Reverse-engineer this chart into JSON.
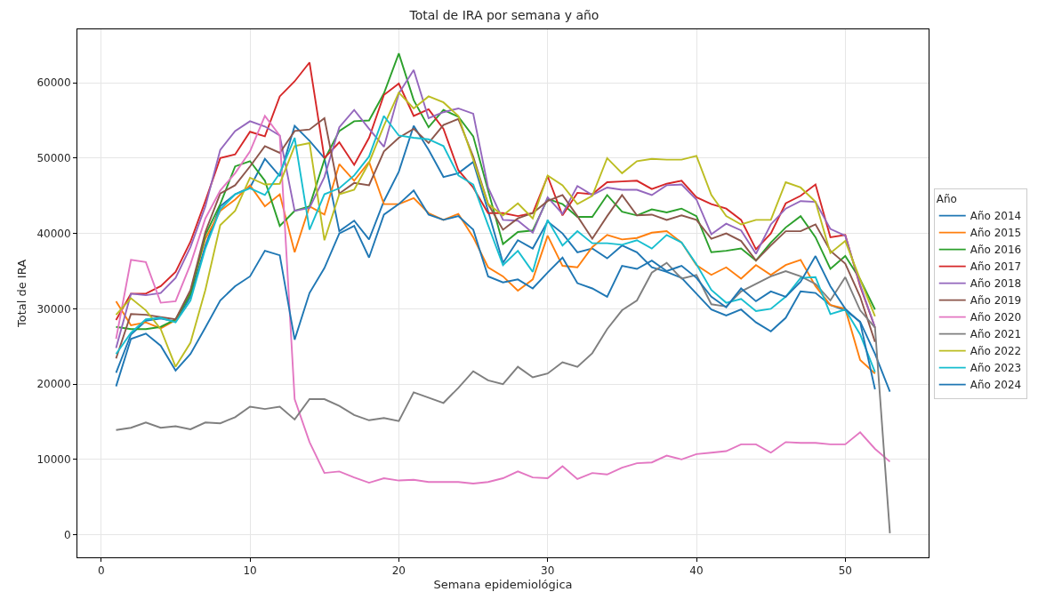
{
  "chart_data": {
    "type": "line",
    "title": "Total de IRA por semana y año",
    "xlabel": "Semana epidemiológica",
    "ylabel": "Total de IRA",
    "legend_title": "Año",
    "legend": "right",
    "grid": true,
    "line_style": "solid",
    "xlim": [
      -1.6,
      55.6
    ],
    "ylim": [
      -3000,
      67100
    ],
    "xticks": [
      0,
      10,
      20,
      30,
      40,
      50
    ],
    "yticks": [
      0,
      10000,
      20000,
      30000,
      40000,
      50000,
      60000
    ],
    "x": [
      1,
      2,
      3,
      4,
      5,
      6,
      7,
      8,
      9,
      10,
      11,
      12,
      13,
      14,
      15,
      16,
      17,
      18,
      19,
      20,
      21,
      22,
      23,
      24,
      25,
      26,
      27,
      28,
      29,
      30,
      31,
      32,
      33,
      34,
      35,
      36,
      37,
      38,
      39,
      40,
      41,
      42,
      43,
      44,
      45,
      46,
      47,
      48,
      49,
      50,
      51,
      52,
      53
    ],
    "series": [
      {
        "name": "Año 2014",
        "color": "#1f77b4",
        "values": [
          21500,
          26600,
          28400,
          28700,
          28300,
          31600,
          38400,
          43600,
          45200,
          46100,
          49900,
          47600,
          54300,
          52300,
          50000,
          40300,
          41700,
          39200,
          44300,
          48200,
          54300,
          51100,
          47500,
          48000,
          49500,
          43000,
          36100,
          39100,
          38000,
          41600,
          40000,
          37500,
          38000,
          36700,
          38400,
          37500,
          35500,
          34900,
          34100,
          32000,
          29900,
          29100,
          29900,
          28200,
          27000,
          28800,
          32300,
          32100,
          30500,
          29800,
          28300,
          24000,
          19000
        ]
      },
      {
        "name": "Año 2015",
        "color": "#ff7f0e",
        "values": [
          31000,
          27800,
          28200,
          27400,
          28500,
          32300,
          39300,
          43000,
          44500,
          46400,
          43600,
          45200,
          37500,
          43600,
          42500,
          49200,
          47000,
          49500,
          43900,
          43900,
          44700,
          42700,
          41800,
          42600,
          39500,
          35500,
          34300,
          32400,
          33900,
          39700,
          35700,
          35500,
          38200,
          39800,
          39200,
          39400,
          40100,
          40300,
          38800,
          35800,
          34500,
          35500,
          34000,
          35800,
          34500,
          35800,
          36500,
          33000,
          30500,
          30000,
          23200,
          21400,
          null
        ]
      },
      {
        "name": "Año 2016",
        "color": "#2ca02c",
        "values": [
          27600,
          27300,
          27300,
          27600,
          28600,
          32000,
          39800,
          43900,
          48900,
          49600,
          47000,
          41000,
          43000,
          43600,
          49800,
          53600,
          54900,
          55000,
          58600,
          63900,
          57700,
          54100,
          56400,
          55500,
          52900,
          45700,
          38600,
          40200,
          40400,
          44600,
          43900,
          42200,
          42200,
          45100,
          42900,
          42400,
          43200,
          42800,
          43300,
          42300,
          37500,
          37700,
          38000,
          36400,
          38800,
          40800,
          42300,
          39500,
          35300,
          37000,
          33900,
          29900,
          null
        ]
      },
      {
        "name": "Año 2017",
        "color": "#d62728",
        "values": [
          28500,
          32000,
          32000,
          33000,
          34900,
          38900,
          44300,
          50000,
          50500,
          53500,
          52900,
          58200,
          60200,
          62700,
          50000,
          52100,
          49100,
          52700,
          58400,
          59900,
          55600,
          56500,
          53900,
          48400,
          46100,
          42700,
          42700,
          42300,
          42700,
          47600,
          42400,
          45400,
          45200,
          46800,
          46900,
          47000,
          45900,
          46600,
          47000,
          44800,
          43900,
          43300,
          41800,
          37900,
          40000,
          44000,
          45000,
          46500,
          39500,
          39800,
          33000,
          27500,
          null
        ]
      },
      {
        "name": "Año 2018",
        "color": "#9467bd",
        "values": [
          24800,
          32000,
          31800,
          32100,
          34100,
          38200,
          43600,
          51100,
          53600,
          54900,
          54200,
          53000,
          43000,
          43400,
          47500,
          54100,
          56400,
          53900,
          51500,
          58600,
          61700,
          55300,
          56100,
          56600,
          55900,
          46100,
          41800,
          41700,
          40100,
          44800,
          42600,
          46300,
          45100,
          46100,
          45800,
          45800,
          45100,
          46400,
          46500,
          44500,
          39900,
          41300,
          40400,
          37300,
          41200,
          43300,
          44300,
          44200,
          40600,
          39700,
          33200,
          27500,
          null
        ]
      },
      {
        "name": "Año 2019",
        "color": "#8c564b",
        "values": [
          23400,
          29300,
          29200,
          28900,
          28600,
          32500,
          40200,
          45300,
          46400,
          48900,
          51600,
          50700,
          53600,
          53800,
          55300,
          45300,
          46700,
          46400,
          50900,
          52700,
          53900,
          52000,
          54400,
          55200,
          50200,
          43900,
          40500,
          42000,
          42700,
          44300,
          45100,
          42300,
          39300,
          42300,
          45100,
          42400,
          42500,
          41800,
          42400,
          41800,
          39300,
          40000,
          39000,
          36400,
          38400,
          40300,
          40300,
          41200,
          37700,
          36000,
          31600,
          25600,
          null
        ]
      },
      {
        "name": "Año 2020",
        "color": "#e377c2",
        "values": [
          26000,
          36500,
          36200,
          30800,
          31000,
          35900,
          42000,
          45700,
          48000,
          50900,
          55600,
          53000,
          18000,
          12300,
          8200,
          8400,
          7600,
          6900,
          7500,
          7200,
          7300,
          7000,
          7000,
          7000,
          6800,
          7000,
          7500,
          8400,
          7600,
          7500,
          9100,
          7400,
          8200,
          8000,
          8900,
          9500,
          9600,
          10500,
          10000,
          10700,
          10900,
          11100,
          12000,
          12000,
          10900,
          12300,
          12200,
          12200,
          12000,
          12000,
          13600,
          11400,
          9700
        ]
      },
      {
        "name": "Año 2021",
        "color": "#7f7f7f",
        "values": [
          13900,
          14200,
          14900,
          14200,
          14400,
          14000,
          14900,
          14800,
          15600,
          17000,
          16700,
          17000,
          15300,
          18000,
          18000,
          17100,
          15900,
          15200,
          15500,
          15100,
          18900,
          18200,
          17500,
          19500,
          21700,
          20500,
          20000,
          22300,
          20900,
          21400,
          22900,
          22300,
          24100,
          27300,
          29800,
          31100,
          34800,
          36100,
          34000,
          34500,
          30600,
          30300,
          32300,
          33300,
          34300,
          35000,
          34300,
          33300,
          31100,
          34200,
          29800,
          27500,
          200
        ]
      },
      {
        "name": "Año 2022",
        "color": "#bcbd22",
        "values": [
          29200,
          31400,
          29800,
          27300,
          22300,
          25500,
          32500,
          41100,
          43000,
          47400,
          46500,
          46600,
          51600,
          52000,
          39100,
          45200,
          45800,
          49400,
          54300,
          58700,
          56600,
          58200,
          57400,
          55600,
          49800,
          43900,
          42400,
          44000,
          42000,
          47700,
          46400,
          43900,
          45000,
          50000,
          48000,
          49600,
          49900,
          49800,
          49800,
          50300,
          45100,
          42300,
          41200,
          41800,
          41800,
          46800,
          46100,
          44200,
          37400,
          39000,
          33900,
          29000,
          null
        ]
      },
      {
        "name": "Año 2023",
        "color": "#17becf",
        "values": [
          24000,
          26800,
          28600,
          28800,
          28200,
          31100,
          38000,
          43200,
          45200,
          46000,
          45100,
          48000,
          52700,
          40500,
          45200,
          46000,
          47700,
          50200,
          55600,
          53000,
          52700,
          52500,
          51600,
          47700,
          46500,
          41100,
          35800,
          37700,
          34900,
          41800,
          38400,
          40300,
          38700,
          38700,
          38500,
          39100,
          38000,
          39800,
          38800,
          35900,
          32500,
          30800,
          31300,
          29700,
          30000,
          31600,
          34100,
          34200,
          29300,
          29900,
          26600,
          21600,
          null
        ]
      },
      {
        "name": "Año 2024",
        "color": "#1f77b4",
        "values": [
          19700,
          26000,
          26700,
          25100,
          21800,
          24000,
          27500,
          31100,
          33000,
          34300,
          37700,
          37100,
          25900,
          32100,
          35400,
          40000,
          41000,
          36800,
          42500,
          43900,
          45700,
          42500,
          41800,
          42300,
          40500,
          34300,
          33500,
          33900,
          32700,
          34800,
          36800,
          33400,
          32700,
          31600,
          35700,
          35300,
          36400,
          35000,
          35700,
          34100,
          31600,
          30200,
          32700,
          31000,
          32300,
          31600,
          33600,
          37000,
          33000,
          30000,
          28200,
          19300,
          null
        ]
      }
    ]
  }
}
